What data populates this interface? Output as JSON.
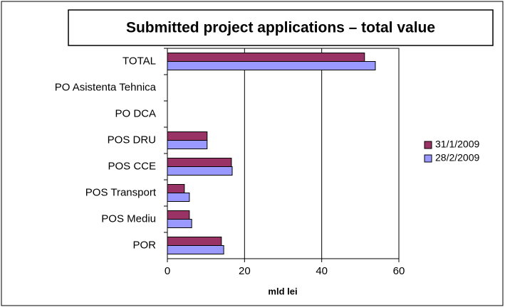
{
  "chart_data": {
    "type": "hbar",
    "title": "Submitted project applications – total value",
    "x_label": "mld lei",
    "categories": [
      "TOTAL",
      "PO Asistenta Tehnica",
      "PO DCA",
      "POS DRU",
      "POS CCE",
      "POS Transport",
      "POS Mediu",
      "POR"
    ],
    "series": [
      {
        "name": "31/1/2009",
        "color": "#993366",
        "values": [
          51.1,
          0,
          0,
          10.3,
          16.6,
          4.4,
          5.7,
          14.0
        ]
      },
      {
        "name": "28/2/2009",
        "color": "#9999ff",
        "values": [
          53.9,
          0,
          0,
          10.3,
          16.8,
          5.7,
          6.3,
          14.6
        ]
      }
    ],
    "xlim": [
      0,
      60
    ],
    "xticks": [
      0,
      20,
      40,
      60
    ],
    "grid": true,
    "legend": "right"
  }
}
